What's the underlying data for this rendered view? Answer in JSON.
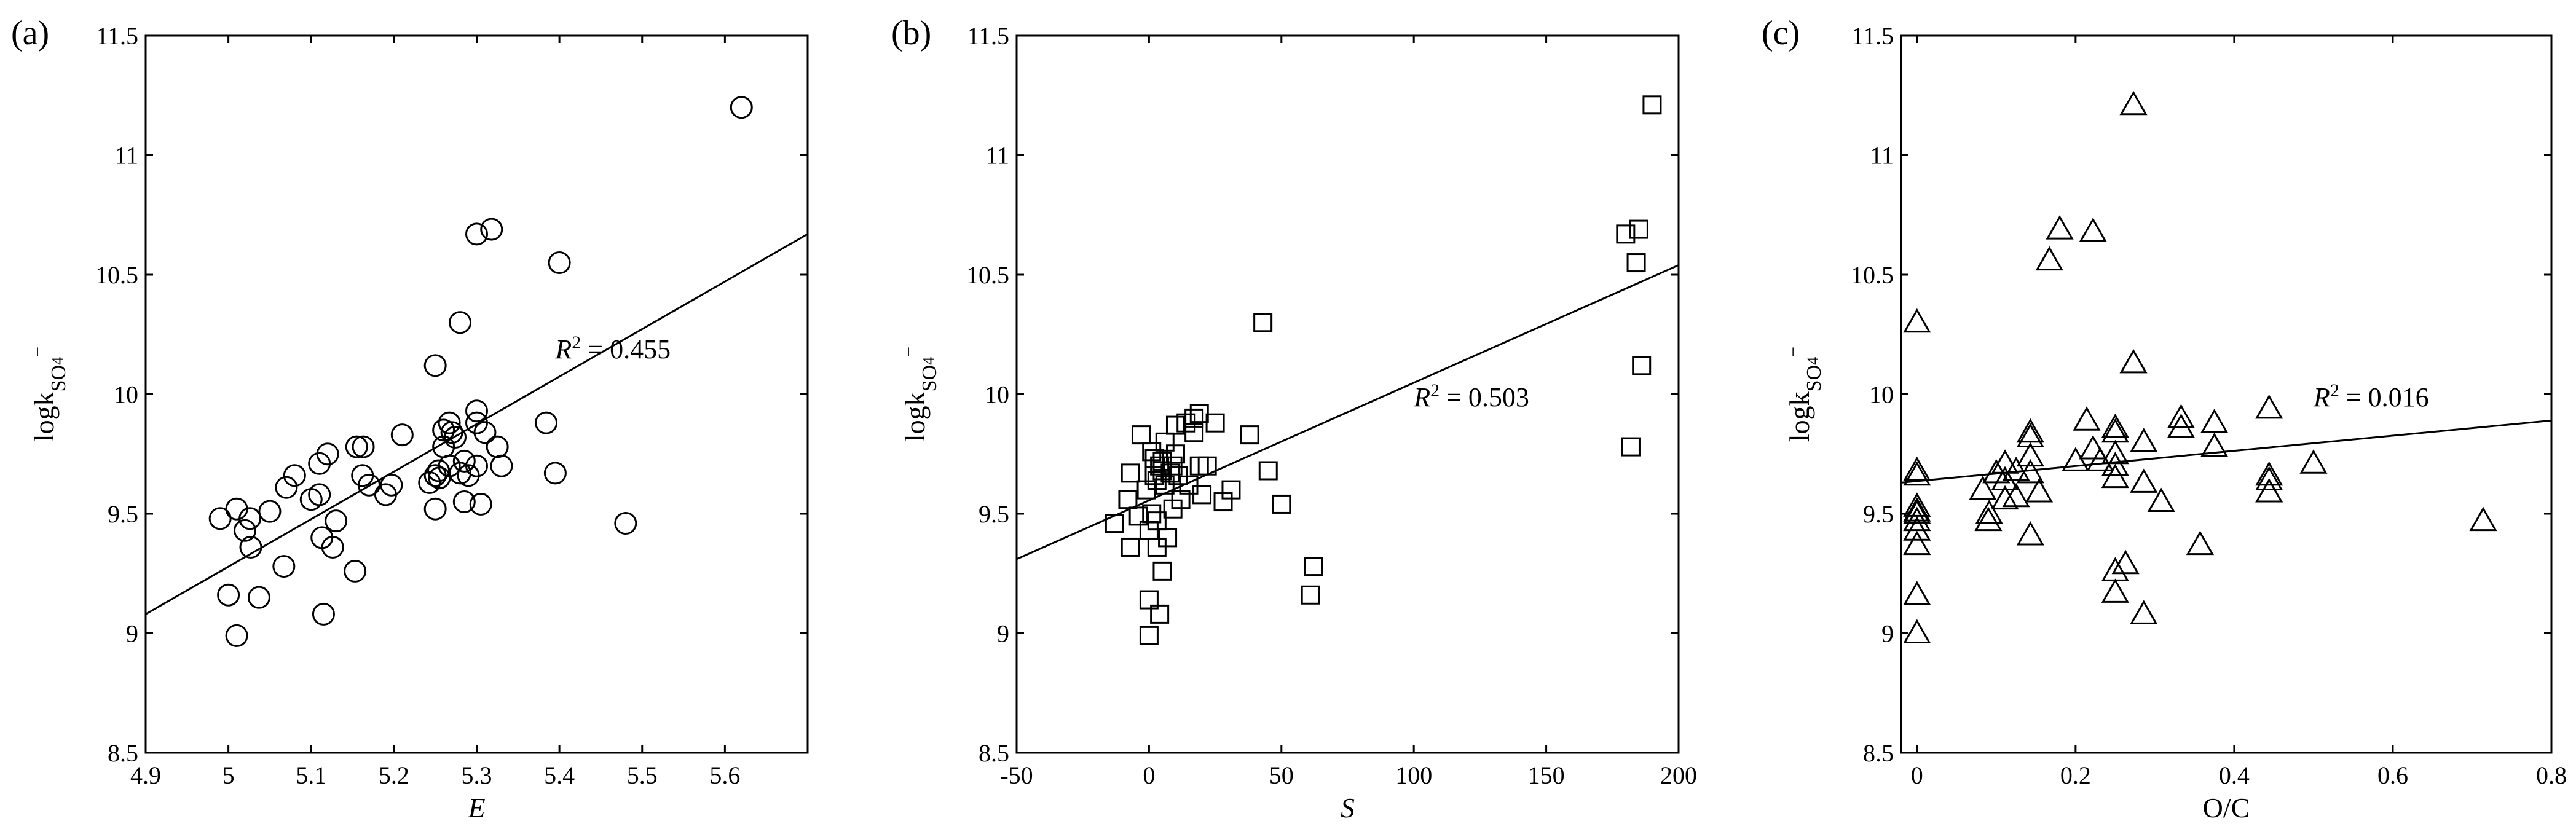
{
  "chart_data": [
    {
      "type": "scatter",
      "panel_label": "(a)",
      "marker": "circle",
      "xlabel": "E",
      "xlabel_italic": true,
      "ylabel": "logk",
      "ylabel_sub": "SO",
      "ylabel_subsub": "4",
      "ylabel_sup": "−",
      "xlim": [
        4.9,
        5.7
      ],
      "ylim": [
        8.5,
        11.5
      ],
      "xticks": [
        "4.9",
        "5",
        "5.1",
        "5.2",
        "5.3",
        "5.4",
        "5.5",
        "5.6"
      ],
      "xtick_values": [
        4.9,
        5.0,
        5.1,
        5.2,
        5.3,
        5.4,
        5.5,
        5.6
      ],
      "yticks": [
        "8.5",
        "9",
        "9.5",
        "10",
        "10.5",
        "11",
        "11.5"
      ],
      "ytick_values": [
        8.5,
        9.0,
        9.5,
        10.0,
        10.5,
        11.0,
        11.5
      ],
      "fit": {
        "x": [
          4.9,
          5.7
        ],
        "y": [
          9.08,
          10.67
        ]
      },
      "r2_label": "R",
      "r2_sup": "2",
      "r2_text": " = 0.455",
      "r2_at": [
        5.395,
        10.15
      ],
      "points": [
        [
          5.62,
          11.2
        ],
        [
          5.3,
          10.67
        ],
        [
          5.318,
          10.69
        ],
        [
          5.4,
          10.55
        ],
        [
          5.28,
          10.3
        ],
        [
          5.25,
          10.12
        ],
        [
          5.3,
          9.93
        ],
        [
          5.384,
          9.88
        ],
        [
          5.267,
          9.88
        ],
        [
          5.3,
          9.88
        ],
        [
          5.26,
          9.85
        ],
        [
          5.27,
          9.84
        ],
        [
          5.31,
          9.84
        ],
        [
          5.274,
          9.82
        ],
        [
          5.21,
          9.83
        ],
        [
          5.325,
          9.78
        ],
        [
          5.26,
          9.78
        ],
        [
          5.155,
          9.78
        ],
        [
          5.163,
          9.78
        ],
        [
          5.12,
          9.75
        ],
        [
          5.11,
          9.71
        ],
        [
          5.285,
          9.72
        ],
        [
          5.3,
          9.7
        ],
        [
          5.33,
          9.7
        ],
        [
          5.267,
          9.7
        ],
        [
          5.254,
          9.68
        ],
        [
          5.25,
          9.66
        ],
        [
          5.28,
          9.67
        ],
        [
          5.29,
          9.66
        ],
        [
          5.255,
          9.65
        ],
        [
          5.243,
          9.63
        ],
        [
          5.395,
          9.67
        ],
        [
          5.08,
          9.66
        ],
        [
          5.162,
          9.66
        ],
        [
          5.17,
          9.62
        ],
        [
          5.197,
          9.62
        ],
        [
          5.19,
          9.58
        ],
        [
          5.07,
          9.61
        ],
        [
          5.11,
          9.58
        ],
        [
          5.05,
          9.51
        ],
        [
          5.1,
          9.56
        ],
        [
          5.026,
          9.48
        ],
        [
          4.99,
          9.48
        ],
        [
          5.01,
          9.52
        ],
        [
          5.25,
          9.52
        ],
        [
          5.285,
          9.55
        ],
        [
          5.305,
          9.54
        ],
        [
          5.48,
          9.46
        ],
        [
          5.13,
          9.47
        ],
        [
          5.02,
          9.43
        ],
        [
          5.027,
          9.36
        ],
        [
          5.113,
          9.4
        ],
        [
          5.126,
          9.36
        ],
        [
          5.067,
          9.28
        ],
        [
          5.153,
          9.26
        ],
        [
          5.037,
          9.15
        ],
        [
          5.0,
          9.16
        ],
        [
          5.115,
          9.08
        ],
        [
          5.01,
          8.99
        ]
      ]
    },
    {
      "type": "scatter",
      "panel_label": "(b)",
      "marker": "square",
      "xlabel": "S",
      "xlabel_italic": true,
      "ylabel": "logk",
      "ylabel_sub": "SO",
      "ylabel_subsub": "4",
      "ylabel_sup": "−",
      "xlim": [
        -50,
        200
      ],
      "ylim": [
        8.5,
        11.5
      ],
      "xticks": [
        "-50",
        "0",
        "50",
        "100",
        "150",
        "200"
      ],
      "xtick_values": [
        -50,
        0,
        50,
        100,
        150,
        200
      ],
      "yticks": [
        "8.5",
        "9",
        "9.5",
        "10",
        "10.5",
        "11",
        "11.5"
      ],
      "ytick_values": [
        8.5,
        9.0,
        9.5,
        10.0,
        10.5,
        11.0,
        11.5
      ],
      "fit": {
        "x": [
          -50,
          200
        ],
        "y": [
          9.31,
          10.54
        ]
      },
      "r2_label": "R",
      "r2_sup": "2",
      "r2_text": " = 0.503",
      "r2_at": [
        100,
        9.95
      ],
      "points": [
        [
          190,
          11.21
        ],
        [
          185,
          10.69
        ],
        [
          180,
          10.67
        ],
        [
          184,
          10.55
        ],
        [
          43,
          10.3
        ],
        [
          186,
          10.12
        ],
        [
          182,
          9.78
        ],
        [
          19,
          9.92
        ],
        [
          17,
          9.9
        ],
        [
          14,
          9.88
        ],
        [
          10,
          9.87
        ],
        [
          25,
          9.88
        ],
        [
          -3,
          9.83
        ],
        [
          38,
          9.83
        ],
        [
          17,
          9.84
        ],
        [
          6,
          9.8
        ],
        [
          10,
          9.75
        ],
        [
          2,
          9.73
        ],
        [
          1,
          9.76
        ],
        [
          5,
          9.72
        ],
        [
          4,
          9.7
        ],
        [
          9,
          9.7
        ],
        [
          19,
          9.7
        ],
        [
          22,
          9.7
        ],
        [
          5,
          9.68
        ],
        [
          -7,
          9.67
        ],
        [
          8,
          9.67
        ],
        [
          45,
          9.68
        ],
        [
          11,
          9.66
        ],
        [
          2,
          9.66
        ],
        [
          3,
          9.64
        ],
        [
          6,
          9.62
        ],
        [
          15,
          9.62
        ],
        [
          -1,
          9.6
        ],
        [
          31,
          9.6
        ],
        [
          20,
          9.58
        ],
        [
          12,
          9.56
        ],
        [
          -8,
          9.56
        ],
        [
          28,
          9.55
        ],
        [
          50,
          9.54
        ],
        [
          9,
          9.52
        ],
        [
          1,
          9.5
        ],
        [
          -4,
          9.49
        ],
        [
          3,
          9.47
        ],
        [
          -13,
          9.46
        ],
        [
          0,
          9.43
        ],
        [
          7,
          9.4
        ],
        [
          -7,
          9.36
        ],
        [
          3,
          9.36
        ],
        [
          62,
          9.28
        ],
        [
          5,
          9.26
        ],
        [
          0,
          9.14
        ],
        [
          61,
          9.16
        ],
        [
          4,
          9.08
        ],
        [
          0,
          8.99
        ]
      ]
    },
    {
      "type": "scatter",
      "panel_label": "(c)",
      "marker": "triangle",
      "xlabel": "O/C",
      "xlabel_italic": false,
      "ylabel": "logk",
      "ylabel_sub": "SO",
      "ylabel_subsub": "4",
      "ylabel_sup": "−",
      "xlim": [
        -0.02,
        0.8
      ],
      "ylim": [
        8.5,
        11.5
      ],
      "xticks": [
        "0",
        "0.2",
        "0.4",
        "0.6",
        "0.8"
      ],
      "xtick_values": [
        0,
        0.2,
        0.4,
        0.6,
        0.8
      ],
      "yticks": [
        "8.5",
        "9",
        "9.5",
        "10",
        "10.5",
        "11",
        "11.5"
      ],
      "ytick_values": [
        8.5,
        9.0,
        9.5,
        10.0,
        10.5,
        11.0,
        11.5
      ],
      "fit": {
        "x": [
          -0.02,
          0.8
        ],
        "y": [
          9.63,
          9.89
        ]
      },
      "r2_label": "R",
      "r2_sup": "2",
      "r2_text": " = 0.016",
      "r2_at": [
        0.5,
        9.95
      ],
      "points": [
        [
          0.273,
          11.21
        ],
        [
          0.18,
          10.69
        ],
        [
          0.222,
          10.68
        ],
        [
          0.167,
          10.56
        ],
        [
          0.0,
          10.3
        ],
        [
          0.273,
          10.13
        ],
        [
          0.333,
          9.9
        ],
        [
          0.444,
          9.94
        ],
        [
          0.214,
          9.89
        ],
        [
          0.25,
          9.86
        ],
        [
          0.25,
          9.84
        ],
        [
          0.143,
          9.84
        ],
        [
          0.143,
          9.82
        ],
        [
          0.333,
          9.86
        ],
        [
          0.375,
          9.88
        ],
        [
          0.286,
          9.8
        ],
        [
          0.375,
          9.78
        ],
        [
          0.222,
          9.77
        ],
        [
          0.25,
          9.75
        ],
        [
          0.143,
          9.74
        ],
        [
          0.2,
          9.72
        ],
        [
          0.231,
          9.72
        ],
        [
          0.111,
          9.71
        ],
        [
          0.25,
          9.7
        ],
        [
          0.5,
          9.71
        ],
        [
          0.0,
          9.68
        ],
        [
          0.0,
          9.66
        ],
        [
          0.125,
          9.68
        ],
        [
          0.1,
          9.67
        ],
        [
          0.143,
          9.67
        ],
        [
          0.111,
          9.64
        ],
        [
          0.25,
          9.65
        ],
        [
          0.286,
          9.63
        ],
        [
          0.444,
          9.66
        ],
        [
          0.444,
          9.64
        ],
        [
          0.083,
          9.6
        ],
        [
          0.154,
          9.59
        ],
        [
          0.444,
          9.59
        ],
        [
          0.125,
          9.57
        ],
        [
          0.111,
          9.56
        ],
        [
          0.308,
          9.55
        ],
        [
          0.0,
          9.53
        ],
        [
          0.0,
          9.51
        ],
        [
          0.0,
          9.5
        ],
        [
          0.091,
          9.5
        ],
        [
          0.0,
          9.47
        ],
        [
          0.09,
          9.47
        ],
        [
          0.0,
          9.43
        ],
        [
          0.143,
          9.41
        ],
        [
          0.0,
          9.37
        ],
        [
          0.357,
          9.37
        ],
        [
          0.0,
          9.16
        ],
        [
          0.25,
          9.26
        ],
        [
          0.263,
          9.29
        ],
        [
          0.25,
          9.17
        ],
        [
          0.286,
          9.08
        ],
        [
          0.0,
          9.0
        ],
        [
          0.714,
          9.47
        ]
      ]
    }
  ]
}
